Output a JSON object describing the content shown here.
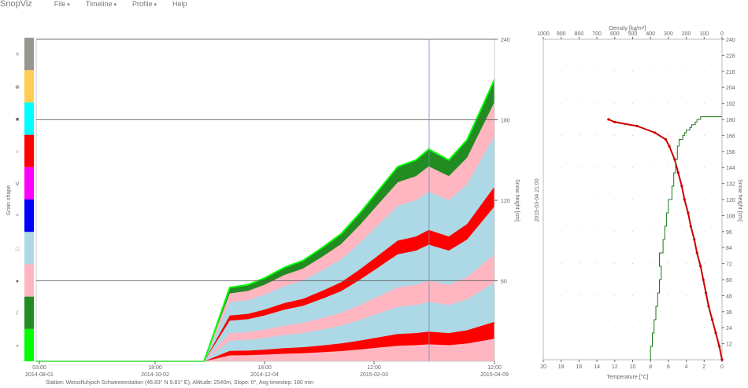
{
  "app": {
    "brand": "SnopViz"
  },
  "menu": [
    {
      "label": "File",
      "icon": "caret-down"
    },
    {
      "label": "Timeline",
      "icon": "caret-down"
    },
    {
      "label": "Profile",
      "icon": "caret-down"
    },
    {
      "label": "Help"
    }
  ],
  "grain_legend": {
    "title": "Grain shape",
    "items": [
      {
        "symbol": "+",
        "color": "#00ff00"
      },
      {
        "symbol": "/",
        "color": "#228b22"
      },
      {
        "symbol": "●",
        "color": "#ffb6c1"
      },
      {
        "symbol": "□",
        "color": "#add8e6"
      },
      {
        "symbol": "^",
        "color": "#0000ff"
      },
      {
        "symbol": "V",
        "color": "#ff00ff"
      },
      {
        "symbol": "○",
        "color": "#ff0000"
      },
      {
        "symbol": "■",
        "color": "#00ffff"
      },
      {
        "symbol": "⊗",
        "color": "#ffcc55"
      },
      {
        "symbol": "⩯",
        "color": "#999590"
      }
    ]
  },
  "timeline": {
    "ylabel": "Snow height [cm]",
    "yticks": [
      "60",
      "120",
      "180",
      "240"
    ],
    "xticks": [
      {
        "time": "03:00",
        "date": "2014-08-01"
      },
      {
        "time": "18:00",
        "date": "2014-10-02"
      },
      {
        "time": "18:00",
        "date": "2014-12-04"
      },
      {
        "time": "12:00",
        "date": "2015-02-03"
      },
      {
        "time": "12:00",
        "date": "2015-04-09"
      }
    ],
    "station_info": "Station: Weissfluhjoch Schweeeestation (46.83° N 9.81° E), Altitude: 2540m, Slope: 0°, Avg timestep: 180 min"
  },
  "profile": {
    "date_label": "2015-03-04 21:00",
    "top_axis_label": "Density [kg/m³]",
    "top_ticks": [
      "1000",
      "900",
      "800",
      "700",
      "600",
      "500",
      "400",
      "300",
      "200",
      "100",
      "0"
    ],
    "bottom_axis_label": "Temperature [°C]",
    "bottom_ticks": [
      "20",
      "18",
      "16",
      "14",
      "12",
      "10",
      "8",
      "6",
      "4",
      "2",
      "0"
    ],
    "right_axis_label": "Snow height [cm]",
    "right_ticks": [
      "12",
      "24",
      "36",
      "48",
      "60",
      "72",
      "84",
      "96",
      "108",
      "120",
      "132",
      "144",
      "156",
      "168",
      "180",
      "192",
      "204",
      "216",
      "228",
      "240"
    ]
  },
  "chart_data": [
    {
      "type": "area",
      "ylabel": "Snow height [cm]",
      "ylim": [
        0,
        240
      ],
      "x": [
        "2014-08-01",
        "2014-08-20",
        "2014-09-10",
        "2014-09-25",
        "2014-10-02",
        "2014-10-10",
        "2014-10-20",
        "2014-11-01",
        "2014-11-15",
        "2014-11-25",
        "2014-12-04",
        "2014-12-15",
        "2014-12-25",
        "2015-01-05",
        "2015-01-15",
        "2015-01-25",
        "2015-02-03",
        "2015-02-15",
        "2015-02-25",
        "2015-03-04",
        "2015-03-15",
        "2015-03-25",
        "2015-04-09"
      ],
      "series": [
        {
          "values": [
            0,
            0,
            0,
            0,
            0,
            0,
            0,
            0,
            55,
            57,
            62,
            70,
            75,
            85,
            95,
            110,
            125,
            145,
            150,
            158,
            150,
            165,
            210
          ]
        }
      ]
    },
    {
      "type": "line",
      "xlabel": "Temperature [°C]",
      "ylabel": "Snow height [cm]",
      "xlim": [
        20,
        0
      ],
      "ylim": [
        0,
        240
      ],
      "series": [
        {
          "color": "#cc0000",
          "x": [
            0,
            0.3,
            0.7,
            1.1,
            1.5,
            1.8,
            2.1,
            2.4,
            2.8,
            3.1,
            3.5,
            3.8,
            4.2,
            4.5,
            4.9,
            5.3,
            5.9,
            6.3,
            7.5,
            9.5,
            12.0,
            12.7
          ],
          "y": [
            0,
            10,
            20,
            30,
            40,
            50,
            60,
            70,
            80,
            90,
            100,
            110,
            120,
            130,
            140,
            150,
            160,
            165,
            170,
            175,
            178,
            180
          ]
        }
      ]
    },
    {
      "type": "line",
      "xlabel": "Density [kg/m³]",
      "ylabel": "Snow height [cm]",
      "xlim": [
        1000,
        0
      ],
      "ylim": [
        0,
        240
      ],
      "series": [
        {
          "color": "#1a7a1a",
          "x": [
            400,
            390,
            380,
            370,
            360,
            350,
            340,
            350,
            330,
            320,
            310,
            300,
            280,
            270,
            260,
            250,
            240,
            220,
            210,
            200,
            180,
            170,
            150,
            140,
            120,
            100,
            60,
            0
          ],
          "y": [
            0,
            10,
            20,
            30,
            40,
            50,
            60,
            70,
            80,
            90,
            100,
            110,
            120,
            130,
            140,
            150,
            160,
            165,
            168,
            170,
            172,
            174,
            176,
            178,
            180,
            182,
            182,
            182
          ]
        }
      ]
    }
  ]
}
